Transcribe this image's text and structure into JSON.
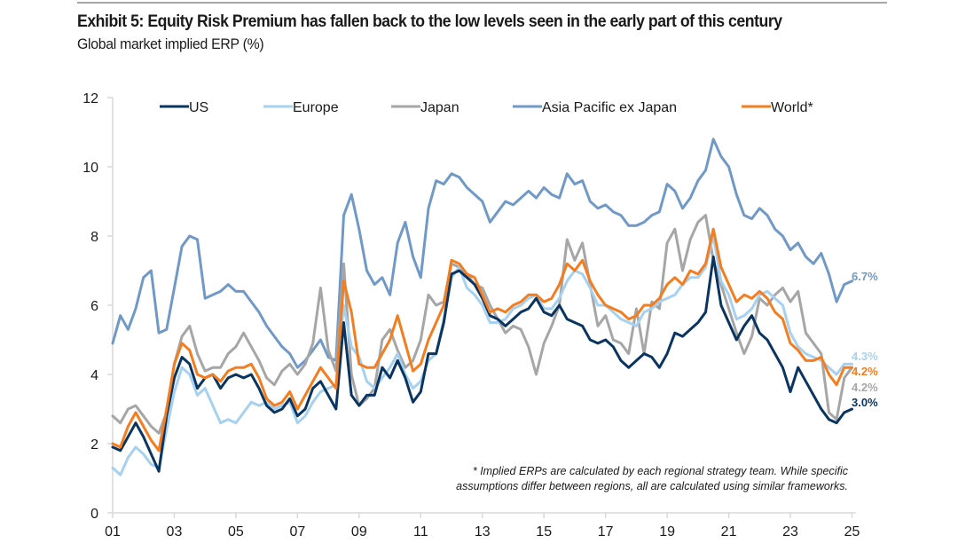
{
  "header": {
    "title": "Exhibit 5: Equity Risk Premium has fallen back to the low levels seen in the early part of this century",
    "subtitle": "Global market implied ERP (%)"
  },
  "chart_data": {
    "type": "line",
    "title": "Exhibit 5: Equity Risk Premium has fallen back to the low levels seen in the early part of this century",
    "subtitle": "Global market implied ERP (%)",
    "xlabel": "",
    "ylabel": "",
    "x_start": 2001.0,
    "x_step": 0.25,
    "xlim": [
      2001,
      2025
    ],
    "ylim": [
      0,
      12
    ],
    "y_ticks": [
      "0",
      "2",
      "4",
      "6",
      "8",
      "10",
      "12"
    ],
    "y_tick_values": [
      0,
      2,
      4,
      6,
      8,
      10,
      12
    ],
    "x_ticks": [
      "01",
      "03",
      "05",
      "07",
      "09",
      "11",
      "13",
      "15",
      "17",
      "19",
      "21",
      "23",
      "25"
    ],
    "x_tick_values": [
      2001,
      2003,
      2005,
      2007,
      2009,
      2011,
      2013,
      2015,
      2017,
      2019,
      2021,
      2023,
      2025
    ],
    "grid": false,
    "legend_position": "top",
    "series": [
      {
        "name": "US",
        "color": "#0b3561",
        "end_label": "3.0%",
        "values": [
          1.9,
          1.8,
          2.2,
          2.6,
          2.2,
          1.7,
          1.2,
          2.8,
          3.9,
          4.5,
          4.3,
          3.6,
          3.9,
          4.0,
          3.6,
          3.9,
          4.0,
          3.9,
          4.0,
          3.6,
          3.1,
          2.9,
          3.0,
          3.3,
          2.8,
          3.0,
          3.6,
          3.8,
          3.4,
          3.0,
          5.5,
          3.4,
          3.1,
          3.4,
          3.4,
          4.2,
          3.9,
          4.4,
          3.9,
          3.2,
          3.5,
          4.6,
          4.6,
          5.5,
          6.9,
          7.0,
          6.8,
          6.6,
          6.2,
          5.7,
          5.6,
          5.4,
          5.6,
          5.8,
          5.9,
          6.2,
          5.8,
          5.7,
          6.0,
          5.6,
          5.5,
          5.4,
          5.0,
          4.9,
          5.0,
          4.8,
          4.4,
          4.2,
          4.4,
          4.6,
          4.5,
          4.2,
          4.6,
          5.2,
          5.1,
          5.3,
          5.5,
          5.8,
          7.4,
          6.0,
          5.5,
          5.0,
          5.4,
          5.7,
          5.2,
          5.0,
          4.6,
          4.2,
          3.5,
          4.2,
          3.8,
          3.4,
          3.0,
          2.7,
          2.6,
          2.9,
          3.0
        ]
      },
      {
        "name": "Europe",
        "color": "#a7d1f0",
        "end_label": "4.3%",
        "values": [
          1.3,
          1.1,
          1.6,
          1.9,
          1.7,
          1.4,
          1.3,
          2.4,
          3.5,
          4.2,
          4.0,
          3.4,
          3.6,
          3.1,
          2.6,
          2.7,
          2.6,
          2.9,
          3.2,
          3.1,
          3.2,
          3.0,
          3.1,
          3.2,
          2.6,
          2.8,
          3.2,
          3.5,
          3.6,
          3.7,
          6.0,
          4.8,
          4.5,
          3.8,
          3.6,
          3.9,
          4.2,
          4.6,
          4.0,
          3.6,
          3.8,
          4.4,
          4.6,
          5.6,
          6.8,
          7.1,
          6.5,
          6.3,
          6.0,
          5.5,
          5.5,
          5.6,
          5.9,
          6.0,
          6.2,
          6.3,
          5.9,
          5.9,
          6.2,
          6.7,
          7.0,
          6.9,
          6.5,
          6.0,
          6.0,
          5.8,
          5.6,
          5.5,
          5.4,
          5.8,
          5.9,
          6.1,
          6.2,
          6.3,
          6.6,
          6.8,
          6.8,
          7.1,
          8.0,
          6.7,
          6.3,
          5.6,
          5.7,
          5.9,
          6.3,
          6.4,
          6.2,
          6.0,
          5.2,
          4.8,
          4.6,
          4.5,
          4.4,
          4.2,
          4.0,
          4.3,
          4.3
        ]
      },
      {
        "name": "Japan",
        "color": "#a6a6a6",
        "end_label": "4.2%",
        "values": [
          2.8,
          2.6,
          3.0,
          3.1,
          2.8,
          2.5,
          2.3,
          2.9,
          4.3,
          5.1,
          5.4,
          4.6,
          4.1,
          4.2,
          4.2,
          4.6,
          4.8,
          5.2,
          4.8,
          4.4,
          3.9,
          3.7,
          4.1,
          4.3,
          4.0,
          4.3,
          4.9,
          6.5,
          4.7,
          4.1,
          7.2,
          4.0,
          3.1,
          3.3,
          3.6,
          5.0,
          5.3,
          4.7,
          4.2,
          4.4,
          5.0,
          6.3,
          6.0,
          6.1,
          7.2,
          7.1,
          6.9,
          6.6,
          6.5,
          6.0,
          5.6,
          5.2,
          5.4,
          5.3,
          4.8,
          4.0,
          4.9,
          5.4,
          6.0,
          7.9,
          7.3,
          7.8,
          6.6,
          5.4,
          5.7,
          5.0,
          4.9,
          4.6,
          5.9,
          4.6,
          6.1,
          5.9,
          7.8,
          8.2,
          7.0,
          7.9,
          8.4,
          8.6,
          7.3,
          6.6,
          5.9,
          5.2,
          4.6,
          5.1,
          6.2,
          6.0,
          6.3,
          6.5,
          6.1,
          6.4,
          5.2,
          4.9,
          4.6,
          2.9,
          2.7,
          3.9,
          4.2
        ]
      },
      {
        "name": "Asia Pacific ex Japan",
        "color": "#7099c8",
        "end_label": "6.7%",
        "values": [
          4.9,
          5.7,
          5.3,
          5.9,
          6.8,
          7.0,
          5.2,
          5.3,
          6.5,
          7.7,
          8.0,
          7.9,
          6.2,
          6.3,
          6.4,
          6.6,
          6.4,
          6.4,
          6.1,
          5.8,
          5.4,
          5.1,
          4.8,
          4.6,
          4.2,
          4.4,
          4.7,
          5.0,
          4.5,
          4.4,
          8.6,
          9.2,
          8.2,
          7.0,
          6.6,
          6.8,
          6.3,
          7.8,
          8.4,
          7.4,
          6.8,
          8.8,
          9.6,
          9.5,
          9.8,
          9.7,
          9.4,
          9.2,
          9.0,
          8.4,
          8.7,
          9.0,
          8.9,
          9.1,
          9.3,
          9.1,
          9.4,
          9.2,
          9.1,
          9.8,
          9.5,
          9.6,
          9.0,
          8.8,
          8.9,
          8.7,
          8.6,
          8.3,
          8.3,
          8.4,
          8.6,
          8.7,
          9.5,
          9.3,
          8.8,
          9.1,
          9.6,
          9.9,
          10.8,
          10.3,
          10.0,
          9.2,
          8.6,
          8.5,
          8.8,
          8.6,
          8.2,
          8.0,
          7.6,
          7.8,
          7.4,
          7.2,
          7.5,
          6.9,
          6.1,
          6.6,
          6.7
        ]
      },
      {
        "name": "World*",
        "color": "#f47d20",
        "end_label": "4.2%",
        "values": [
          2.0,
          1.9,
          2.5,
          2.9,
          2.5,
          2.1,
          1.8,
          3.0,
          4.3,
          4.9,
          4.7,
          4.0,
          3.9,
          4.0,
          3.8,
          4.1,
          4.2,
          4.2,
          4.3,
          3.9,
          3.3,
          3.1,
          3.2,
          3.5,
          3.0,
          3.4,
          3.8,
          4.2,
          3.9,
          3.6,
          6.7,
          5.8,
          4.3,
          4.2,
          4.2,
          4.6,
          5.0,
          5.7,
          4.9,
          4.1,
          4.3,
          5.0,
          5.5,
          6.0,
          7.3,
          7.2,
          6.9,
          6.8,
          6.3,
          5.8,
          5.9,
          5.8,
          6.0,
          6.1,
          6.3,
          6.3,
          6.1,
          6.2,
          6.6,
          7.2,
          7.0,
          7.3,
          6.7,
          6.3,
          6.0,
          5.9,
          5.8,
          5.6,
          5.7,
          6.0,
          6.0,
          6.2,
          6.6,
          6.8,
          6.6,
          7.0,
          6.9,
          7.2,
          8.2,
          7.1,
          6.6,
          6.1,
          6.3,
          6.2,
          6.4,
          6.2,
          5.8,
          5.6,
          4.9,
          4.7,
          4.4,
          4.4,
          4.5,
          4.0,
          3.7,
          4.2,
          4.2
        ]
      }
    ],
    "legend": [
      "US",
      "Europe",
      "Japan",
      "Asia Pacific ex Japan",
      "World*"
    ],
    "annotations": [
      "* Implied ERPs are calculated by each regional strategy team. While specific",
      "assumptions differ between regions, all are calculated using similar frameworks."
    ]
  }
}
